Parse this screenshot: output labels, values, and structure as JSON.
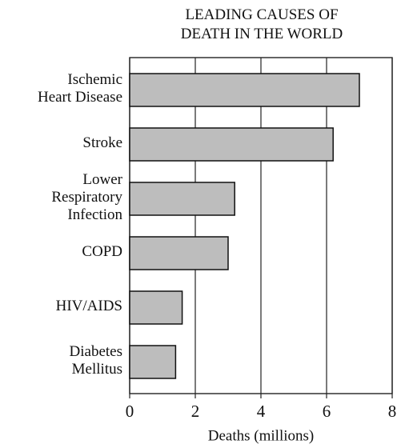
{
  "chart_data": {
    "type": "bar",
    "orientation": "horizontal",
    "title": "LEADING CAUSES OF DEATH IN THE WORLD",
    "categories": [
      "Ischemic Heart Disease",
      "Stroke",
      "Lower Respiratory Infection",
      "COPD",
      "HIV/AIDS",
      "Diabetes Mellitus"
    ],
    "values": [
      7.0,
      6.2,
      3.2,
      3.0,
      1.6,
      1.4
    ],
    "color": "#bdbdbd",
    "xlabel": "Deaths (millions)",
    "xlim": [
      0,
      8
    ],
    "xticks": [
      0,
      2,
      4,
      6,
      8
    ],
    "grid": true
  }
}
